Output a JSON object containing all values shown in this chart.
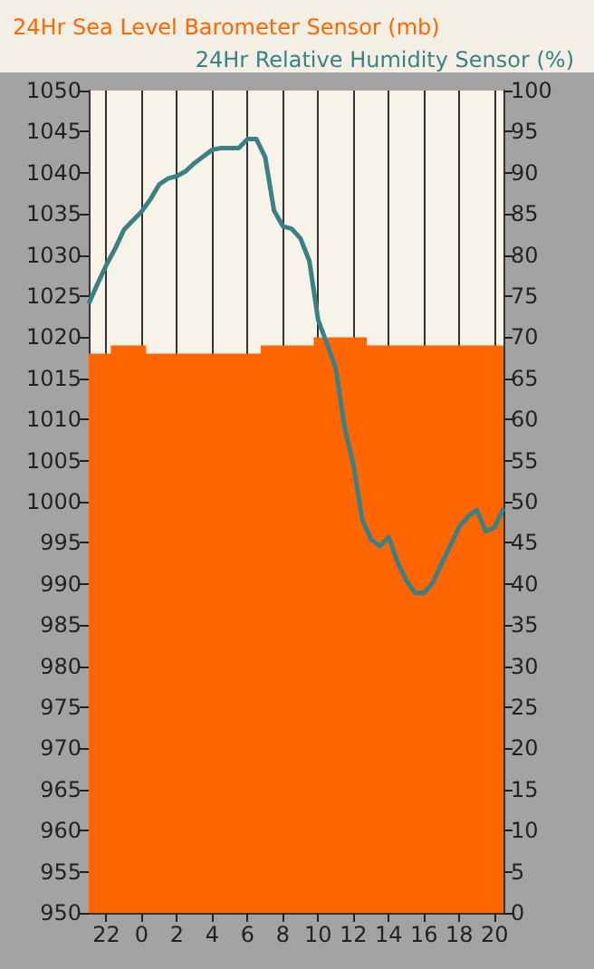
{
  "chart_data": {
    "type": "line",
    "ylabel": "24Hr Sea Level Barometer Sensor (mb)",
    "y2label": "24Hr Relative Humidity Sensor (%)",
    "categories": [
      null,
      null,
      "22",
      null,
      null,
      null,
      "0",
      null,
      null,
      null,
      "2",
      null,
      null,
      null,
      "4",
      null,
      null,
      null,
      "6",
      null,
      null,
      null,
      "8",
      null,
      null,
      null,
      "10",
      null,
      null,
      null,
      "12",
      null,
      null,
      null,
      "14",
      null,
      null,
      null,
      "16",
      null,
      null,
      null,
      "18",
      null,
      null,
      null,
      "20",
      null
    ],
    "ylim": [
      950,
      1050
    ],
    "yticks": [
      950,
      955,
      960,
      965,
      970,
      975,
      980,
      985,
      990,
      995,
      1000,
      1005,
      1010,
      1015,
      1020,
      1025,
      1030,
      1035,
      1040,
      1045,
      1050
    ],
    "y2lim": [
      0,
      100
    ],
    "y2ticks": [
      0,
      5,
      10,
      15,
      20,
      25,
      30,
      35,
      40,
      45,
      50,
      55,
      60,
      65,
      70,
      75,
      80,
      85,
      90,
      95,
      100
    ],
    "grid": "x",
    "series": [
      {
        "type": "area",
        "color": "#ff6600",
        "values": [
          1018,
          1018,
          1018,
          1019,
          1019,
          1019,
          1019,
          1018,
          1018,
          1018,
          1018,
          1018,
          1018,
          1018,
          1018,
          1018,
          1018,
          1018,
          1018,
          1018,
          1019,
          1019,
          1019,
          1019,
          1019,
          1019,
          1020,
          1020,
          1020,
          1020,
          1020,
          1020,
          1019,
          1019,
          1019,
          1019,
          1019,
          1019,
          1019,
          1019,
          1019,
          1019,
          1019,
          1019,
          1019,
          1019,
          1019,
          1019
        ]
      },
      {
        "axis": "y2",
        "color": "#3a8084",
        "values": [
          74.1,
          76.5,
          78.8,
          80.8,
          83.1,
          84.2,
          85.3,
          86.8,
          88.6,
          89.3,
          89.6,
          90.2,
          91.2,
          92,
          92.8,
          93,
          93,
          93,
          94.1,
          94.1,
          91.9,
          85.4,
          83.5,
          83.2,
          82,
          79.3,
          72.1,
          69.2,
          66.2,
          59,
          54.5,
          47.8,
          45.4,
          44.6,
          45.7,
          42.6,
          40.4,
          38.9,
          38.9,
          40.2,
          42.5,
          44.7,
          47,
          48.2,
          49,
          46.4,
          46.9,
          49.2
        ]
      }
    ]
  }
}
